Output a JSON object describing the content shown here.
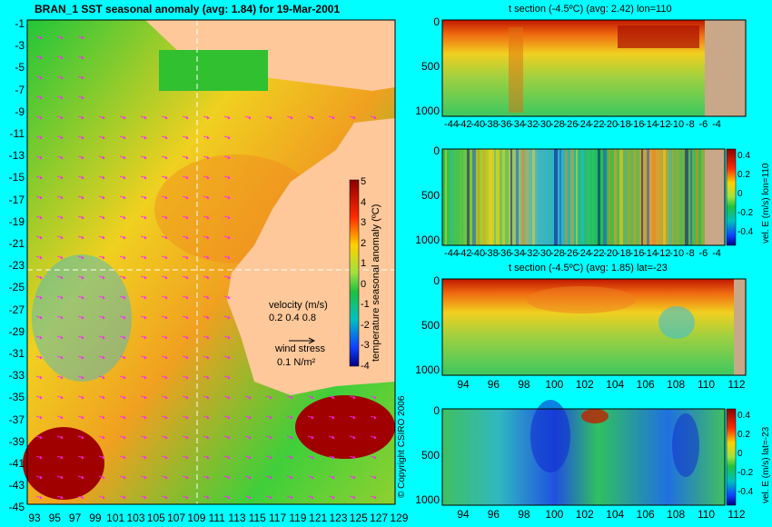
{
  "main_map": {
    "title": "BRAN_1  SST seasonal anomaly  (avg: 1.84)  for 19-Mar-2001",
    "lat_ticks": [
      "-1",
      "-3",
      "-5",
      "-7",
      "-9",
      "-11",
      "-13",
      "-15",
      "-17",
      "-19",
      "-21",
      "-23",
      "-25",
      "-27",
      "-29",
      "-31",
      "-33",
      "-35",
      "-37",
      "-39",
      "-41",
      "-43",
      "-45"
    ],
    "lon_ticks": [
      "93",
      "95",
      "97",
      "99",
      "101",
      "103",
      "105",
      "107",
      "109",
      "111",
      "113",
      "115",
      "117",
      "119",
      "121",
      "123",
      "125",
      "127",
      "129"
    ],
    "colorbar_ticks": [
      "5",
      "4",
      "3",
      "2",
      "1",
      "0",
      "-1",
      "-2",
      "-3",
      "-4"
    ],
    "colorbar_label": "temperature seasonal anomaly (ºC)",
    "velocity_legend_title": "velocity (m/s)",
    "velocity_legend_values": "0.2 0.4 0.8",
    "wind_legend_title": "wind stress",
    "wind_legend_value": "0.1 N/m²",
    "copyright": "© Copyright CSIRO 2006"
  },
  "panels": [
    {
      "title": "t section (-4.5ºC) (avg: 2.42) lon=110",
      "y_ticks": [
        "0",
        "500",
        "1000"
      ],
      "x_ticks": [
        "-44",
        "-42",
        "-40",
        "-38",
        "-36",
        "-34",
        "-32",
        "-30",
        "-28",
        "-26",
        "-24",
        "-22",
        "-20",
        "-18",
        "-16",
        "-14",
        "-12",
        "-10",
        "-8",
        "-6",
        "-4"
      ],
      "colorbar": false,
      "vertical_label": ""
    },
    {
      "title": "",
      "y_ticks": [
        "0",
        "500",
        "1000"
      ],
      "x_ticks": [
        "-44",
        "-42",
        "-40",
        "-38",
        "-36",
        "-34",
        "-32",
        "-30",
        "-28",
        "-26",
        "-24",
        "-22",
        "-20",
        "-18",
        "-16",
        "-14",
        "-12",
        "-10",
        "-8",
        "-6",
        "-4"
      ],
      "colorbar": true,
      "colorbar_ticks": [
        "0.4",
        "0.2",
        "0",
        "-0.2",
        "-0.4"
      ],
      "vertical_label": "vel. E (m/s) lon=110"
    },
    {
      "title": "t section (-4.5ºC) (avg: 1.85) lat=-23",
      "y_ticks": [
        "0",
        "500",
        "1000"
      ],
      "x_ticks": [
        "94",
        "96",
        "98",
        "100",
        "102",
        "104",
        "106",
        "108",
        "110",
        "112"
      ],
      "colorbar": false,
      "vertical_label": ""
    },
    {
      "title": "",
      "y_ticks": [
        "0",
        "500",
        "1000"
      ],
      "x_ticks": [
        "94",
        "96",
        "98",
        "100",
        "102",
        "104",
        "106",
        "108",
        "110",
        "112"
      ],
      "colorbar": true,
      "colorbar_ticks": [
        "0.4",
        "0.2",
        "0",
        "-0.2",
        "-0.4"
      ],
      "vertical_label": "vel. E (m/s) lat=-23"
    }
  ]
}
